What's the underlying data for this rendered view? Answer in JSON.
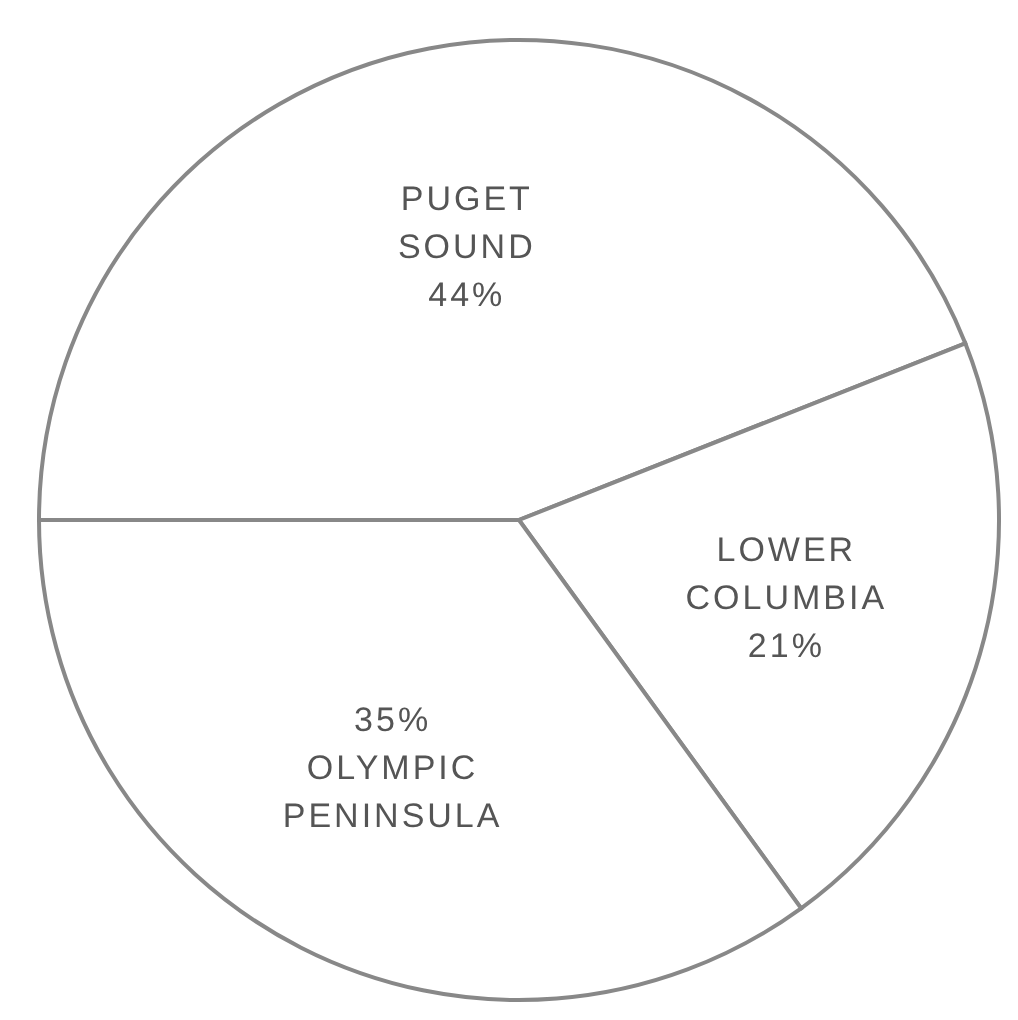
{
  "chart_data": {
    "type": "pie",
    "categories": [
      "PUGET SOUND",
      "LOWER COLUMBIA",
      "OLYMPIC PENINSULA"
    ],
    "values": [
      44,
      21,
      35
    ],
    "value_labels": [
      "44%",
      "21%",
      "35%"
    ],
    "colors": [
      "#ffffff",
      "#ffffff",
      "#ffffff"
    ],
    "legend": false
  }
}
